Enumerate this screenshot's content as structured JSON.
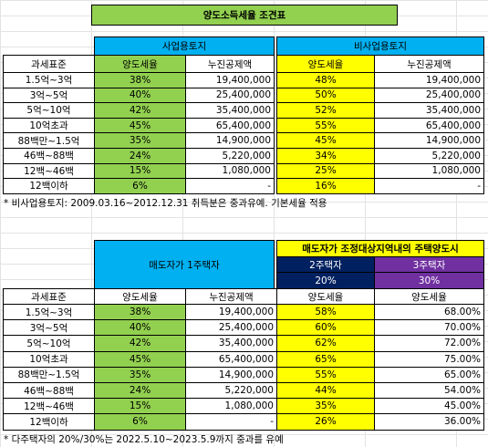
{
  "title": "양도소득세율 조견표",
  "table1": {
    "groups": [
      "사업용토지",
      "비사업용토지"
    ],
    "columns": [
      "과세표준",
      "양도세율",
      "누진공제액",
      "양도세율",
      "누진공제액"
    ],
    "rows": [
      [
        "1.5억~3억",
        "38%",
        "19,400,000",
        "48%",
        "19,400,000"
      ],
      [
        "3억~5억",
        "40%",
        "25,400,000",
        "50%",
        "25,400,000"
      ],
      [
        "5억~10억",
        "42%",
        "35,400,000",
        "52%",
        "35,400,000"
      ],
      [
        "10억초과",
        "45%",
        "65,400,000",
        "55%",
        "65,400,000"
      ],
      [
        "88백만~1.5억",
        "35%",
        "14,900,000",
        "45%",
        "14,900,000"
      ],
      [
        "46백~88백",
        "24%",
        "5,220,000",
        "34%",
        "5,220,000"
      ],
      [
        "12백~46백",
        "15%",
        "1,080,000",
        "25%",
        "1,080,000"
      ],
      [
        "12백이하",
        "6%",
        "-",
        "16%",
        "-"
      ]
    ],
    "note": "* 비사업용토지: 2009.03.16~2012.12.31 취득분은 중과유예. 기본세율 적용"
  },
  "table2": {
    "group_left": "매도자가 1주택자",
    "group_right": "매도자가 조정대상지역내의 주택양도시",
    "sub": [
      {
        "name": "2주택자",
        "rate": "20%"
      },
      {
        "name": "3주택자",
        "rate": "30%"
      }
    ],
    "columns": [
      "과세표준",
      "양도세율",
      "누진공제액",
      "양도세율",
      "양도세율"
    ],
    "rows": [
      [
        "1.5억~3억",
        "38%",
        "19,400,000",
        "58%",
        "68.00%"
      ],
      [
        "3억~5억",
        "40%",
        "25,400,000",
        "60%",
        "70.00%"
      ],
      [
        "5억~10억",
        "42%",
        "35,400,000",
        "62%",
        "72.00%"
      ],
      [
        "10억초과",
        "45%",
        "65,400,000",
        "65%",
        "75.00%"
      ],
      [
        "88백만~1.5억",
        "35%",
        "14,900,000",
        "55%",
        "65.00%"
      ],
      [
        "46백~88백",
        "24%",
        "5,220,000",
        "44%",
        "54.00%"
      ],
      [
        "12백~46백",
        "15%",
        "1,080,000",
        "35%",
        "45.00%"
      ],
      [
        "12백이하",
        "6%",
        "-",
        "26%",
        "36.00%"
      ]
    ],
    "note": "* 다주택자의 20%/30%는 2022.5.10~2023.5.9까지 중과를 유예"
  }
}
